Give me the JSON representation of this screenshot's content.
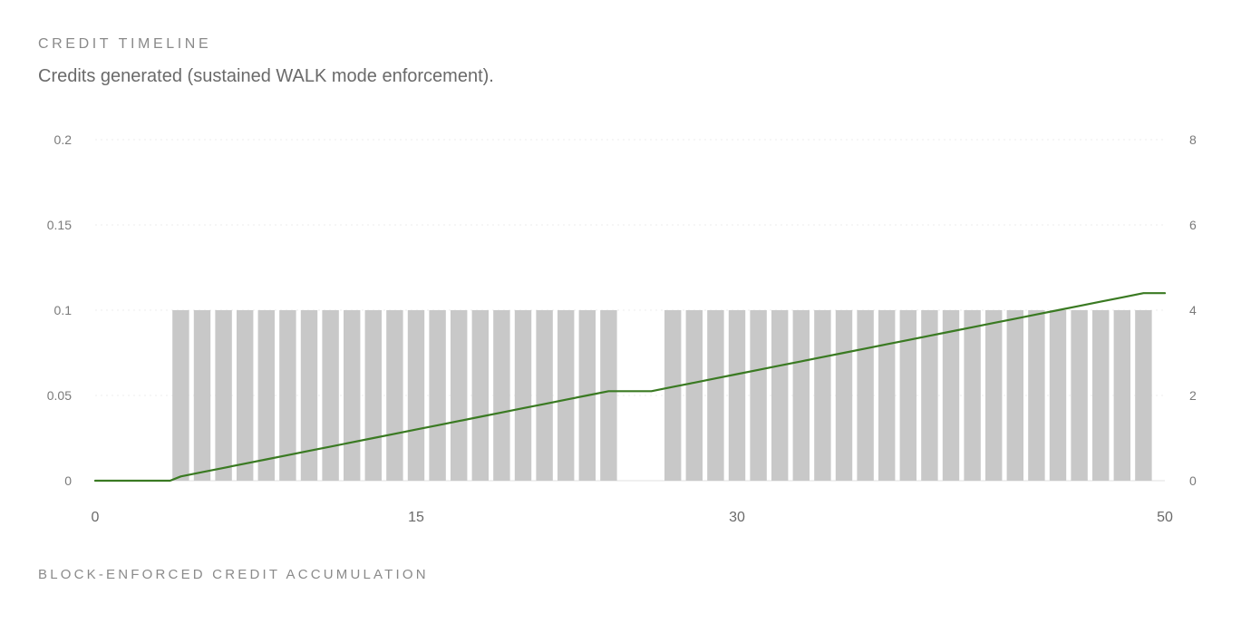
{
  "header": {
    "title": "CREDIT TIMELINE",
    "subtitle": "Credits generated (sustained WALK mode enforcement)."
  },
  "footer": {
    "label": "BLOCK-ENFORCED CREDIT ACCUMULATION"
  },
  "chart_data": {
    "type": "bar",
    "title": "",
    "xlabel": "",
    "ylabel": "",
    "xlim": [
      0,
      50
    ],
    "x_ticks": [
      "0",
      "15",
      "30",
      "50"
    ],
    "y_left": {
      "lim": [
        0,
        0.2
      ],
      "ticks": [
        "0",
        "0.05",
        "0.1",
        "0.15",
        "0.2"
      ]
    },
    "y_right": {
      "lim": [
        0,
        8
      ],
      "ticks": [
        "0",
        "2",
        "4",
        "6",
        "8"
      ]
    },
    "grid": "horizontal dotted",
    "bar_color": "#c8c8c8",
    "line_color": "#3a7a22",
    "series": [
      {
        "type": "bar",
        "axis": "left",
        "x": [
          4,
          5,
          6,
          7,
          8,
          9,
          10,
          11,
          12,
          13,
          14,
          15,
          16,
          17,
          18,
          19,
          20,
          21,
          22,
          23,
          24,
          25,
          26,
          27,
          28,
          29,
          30,
          31,
          32,
          33,
          34,
          35,
          36,
          37,
          38,
          39,
          40,
          41,
          42,
          43,
          44,
          45,
          46,
          47,
          48,
          49
        ],
        "values": [
          0.1,
          0.1,
          0.1,
          0.1,
          0.1,
          0.1,
          0.1,
          0.1,
          0.1,
          0.1,
          0.1,
          0.1,
          0.1,
          0.1,
          0.1,
          0.1,
          0.1,
          0.1,
          0.1,
          0.1,
          0.1,
          0,
          0,
          0.1,
          0.1,
          0.1,
          0.1,
          0.1,
          0.1,
          0.1,
          0.1,
          0.1,
          0.1,
          0.1,
          0.1,
          0.1,
          0.1,
          0.1,
          0.1,
          0.1,
          0.1,
          0.1,
          0.1,
          0.1,
          0.1,
          0.1
        ]
      },
      {
        "type": "line",
        "axis": "right",
        "points": [
          [
            0,
            0
          ],
          [
            3,
            0
          ],
          [
            3.5,
            0
          ],
          [
            4,
            0.1
          ],
          [
            5,
            0.2
          ],
          [
            6,
            0.3
          ],
          [
            7,
            0.4
          ],
          [
            8,
            0.5
          ],
          [
            9,
            0.6
          ],
          [
            10,
            0.7
          ],
          [
            11,
            0.8
          ],
          [
            12,
            0.9
          ],
          [
            13,
            1.0
          ],
          [
            14,
            1.1
          ],
          [
            15,
            1.2
          ],
          [
            16,
            1.3
          ],
          [
            17,
            1.4
          ],
          [
            18,
            1.5
          ],
          [
            19,
            1.6
          ],
          [
            20,
            1.7
          ],
          [
            21,
            1.8
          ],
          [
            22,
            1.9
          ],
          [
            23,
            2.0
          ],
          [
            24,
            2.1
          ],
          [
            25,
            2.1
          ],
          [
            26,
            2.1
          ],
          [
            27,
            2.2
          ],
          [
            28,
            2.3
          ],
          [
            29,
            2.4
          ],
          [
            30,
            2.5
          ],
          [
            31,
            2.6
          ],
          [
            32,
            2.7
          ],
          [
            33,
            2.8
          ],
          [
            34,
            2.9
          ],
          [
            35,
            3.0
          ],
          [
            36,
            3.1
          ],
          [
            37,
            3.2
          ],
          [
            38,
            3.3
          ],
          [
            39,
            3.4
          ],
          [
            40,
            3.5
          ],
          [
            41,
            3.6
          ],
          [
            42,
            3.7
          ],
          [
            43,
            3.8
          ],
          [
            44,
            3.9
          ],
          [
            45,
            4.0
          ],
          [
            46,
            4.1
          ],
          [
            47,
            4.2
          ],
          [
            48,
            4.3
          ],
          [
            49,
            4.4
          ],
          [
            50,
            4.4
          ]
        ]
      }
    ]
  }
}
